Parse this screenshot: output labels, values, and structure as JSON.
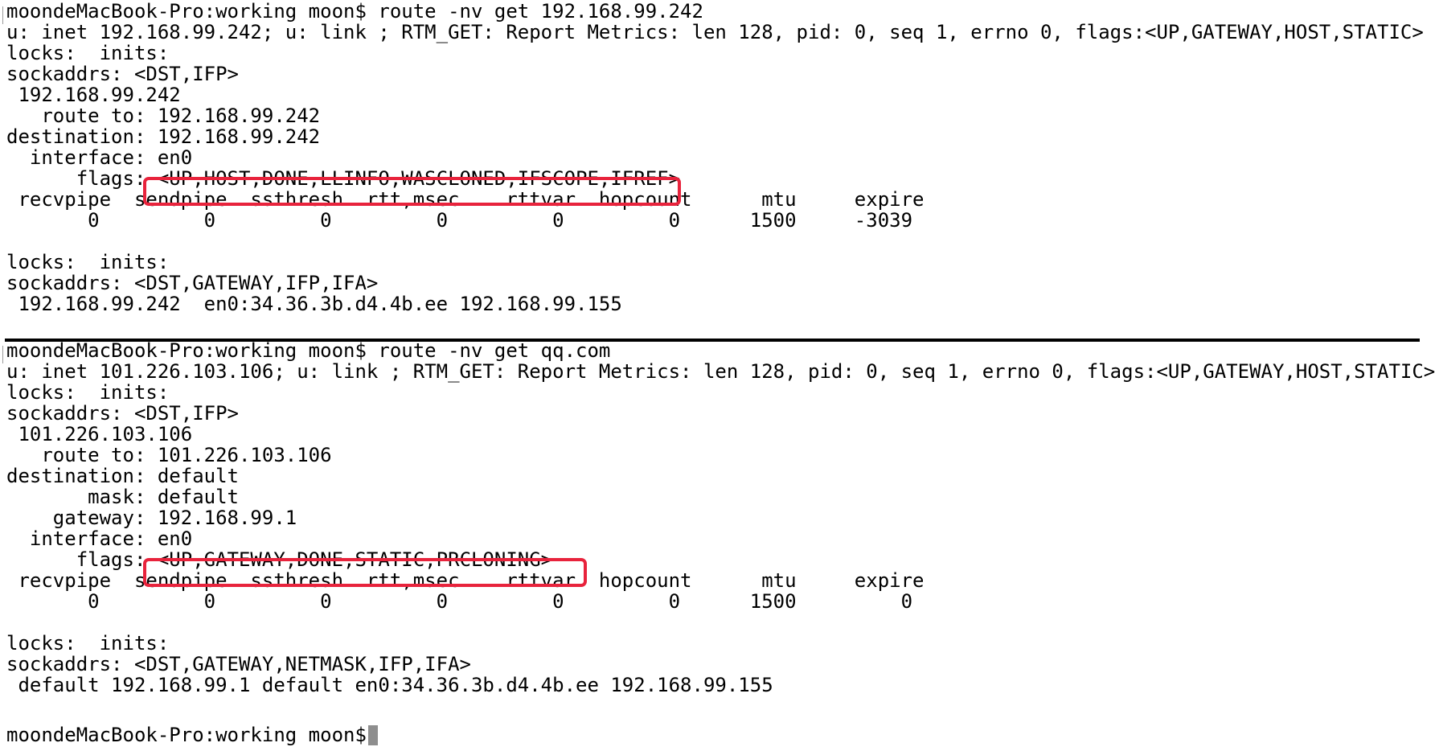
{
  "terminal": {
    "colors": {
      "background": "#ffffff",
      "text": "#000000",
      "highlight": "#e8233c",
      "cursor": "#8e8e8e"
    },
    "lines": [
      "moondeMacBook-Pro:working moon$ route -nv get 192.168.99.242",
      "u: inet 192.168.99.242; u: link ; RTM_GET: Report Metrics: len 128, pid: 0, seq 1, errno 0, flags:<UP,GATEWAY,HOST,STATIC>",
      "locks:  inits:",
      "sockaddrs: <DST,IFP>",
      " 192.168.99.242",
      "   route to: 192.168.99.242",
      "destination: 192.168.99.242",
      "  interface: en0",
      "      flags: <UP,HOST,DONE,LLINFO,WASCLONED,IFSCOPE,IFREF>",
      " recvpipe  sendpipe  ssthresh  rtt,msec    rttvar  hopcount      mtu     expire",
      "       0         0         0         0         0         0      1500     -3039",
      "",
      "locks:  inits:",
      "sockaddrs: <DST,GATEWAY,IFP,IFA>",
      " 192.168.99.242  en0:34.36.3b.d4.4b.ee 192.168.99.155",
      "moondeMacBook-Pro:working moon$ route -nv get qq.com",
      "u: inet 101.226.103.106; u: link ; RTM_GET: Report Metrics: len 128, pid: 0, seq 1, errno 0, flags:<UP,GATEWAY,HOST,STATIC>",
      "locks:  inits:",
      "sockaddrs: <DST,IFP>",
      " 101.226.103.106",
      "   route to: 101.226.103.106",
      "destination: default",
      "       mask: default",
      "    gateway: 192.168.99.1",
      "  interface: en0",
      "      flags: <UP,GATEWAY,DONE,STATIC,PRCLONING>",
      " recvpipe  sendpipe  ssthresh  rtt,msec    rttvar  hopcount      mtu     expire",
      "       0         0         0         0         0         0      1500         0",
      "",
      "locks:  inits:",
      "sockaddrs: <DST,GATEWAY,NETMASK,IFP,IFA>",
      " default 192.168.99.1 default en0:34.36.3b.d4.4b.ee 192.168.99.155",
      "moondeMacBook-Pro:working moon$ "
    ]
  }
}
